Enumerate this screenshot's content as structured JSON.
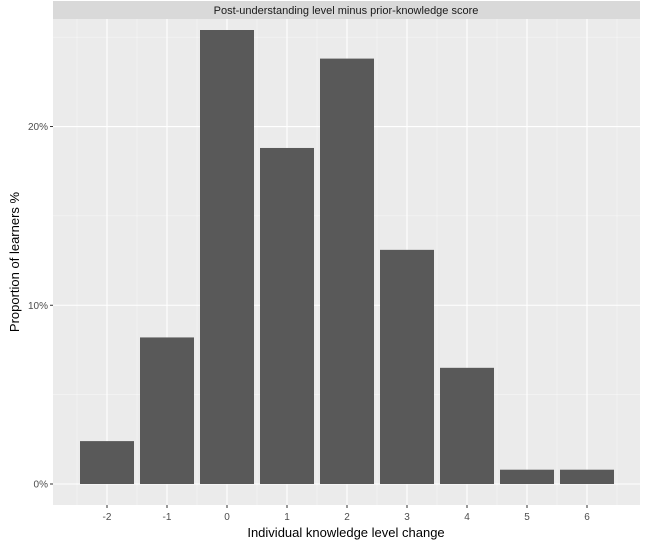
{
  "chart_data": {
    "type": "bar",
    "title": "Post-understanding level minus prior-knowledge score",
    "xlabel": "Individual knowledge level change",
    "ylabel": "Proportion of learners %",
    "categories": [
      "-2",
      "-1",
      "0",
      "1",
      "2",
      "3",
      "4",
      "5",
      "6"
    ],
    "values": [
      2.4,
      8.2,
      25.4,
      18.8,
      23.8,
      13.1,
      6.5,
      0.8,
      0.8
    ],
    "ylim": [
      0,
      25.4
    ],
    "yticks": [
      0,
      10,
      20
    ],
    "ytick_labels": [
      "0%",
      "10%",
      "20%"
    ],
    "grid": true,
    "legend": "none",
    "colors": {
      "bar": "#595959",
      "panel": "#ebebeb",
      "grid_major": "#ffffff",
      "strip": "#d9d9d9"
    }
  }
}
